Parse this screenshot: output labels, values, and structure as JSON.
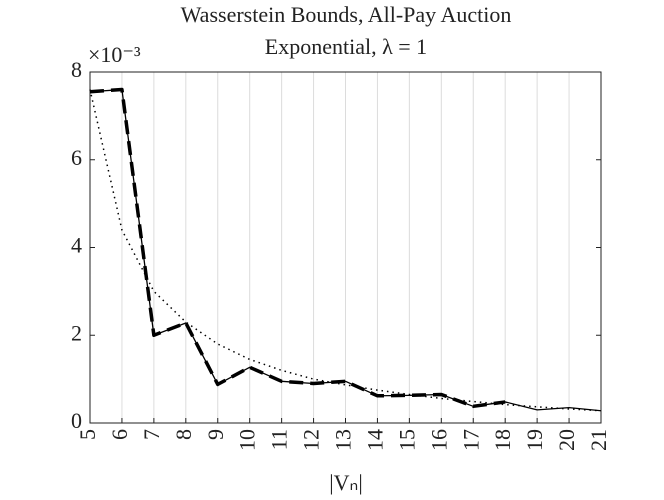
{
  "chart_data": {
    "type": "line",
    "title": [
      "Wasserstein Bounds, All-Pay Auction",
      "Exponential, λ = 1"
    ],
    "xlabel": "|Vₙ|",
    "y_multiplier": "×10⁻³",
    "x": [
      5,
      6,
      7,
      8,
      9,
      10,
      11,
      12,
      13,
      14,
      15,
      16,
      17,
      18,
      19,
      20,
      21
    ],
    "series": [
      {
        "color": "#000000",
        "style": "solid",
        "values": [
          7.55,
          7.6,
          2.0,
          2.28,
          0.88,
          1.27,
          0.95,
          0.9,
          0.95,
          0.62,
          0.63,
          0.65,
          0.38,
          0.48,
          0.3,
          0.35,
          0.28
        ]
      },
      {
        "color": "#000000",
        "style": "dashed",
        "values": [
          7.55,
          7.6,
          2.0,
          2.28,
          0.88,
          1.27,
          0.95,
          0.9,
          0.95,
          0.62,
          0.63,
          0.65,
          0.38,
          0.48,
          null,
          null,
          null
        ]
      },
      {
        "color": "#000000",
        "style": "dotted",
        "values": [
          7.6,
          4.4,
          3.0,
          2.3,
          1.8,
          1.45,
          1.2,
          1.0,
          0.87,
          0.75,
          0.65,
          0.56,
          0.49,
          0.42,
          0.37,
          0.32,
          0.28
        ]
      }
    ],
    "xlim": [
      5,
      21
    ],
    "xticks": [
      5,
      6,
      7,
      8,
      9,
      10,
      11,
      12,
      13,
      14,
      15,
      16,
      17,
      18,
      19,
      20,
      21
    ],
    "ylim": [
      0,
      8
    ],
    "yticks": [
      0,
      2,
      4,
      6,
      8
    ],
    "xgrid": true
  }
}
